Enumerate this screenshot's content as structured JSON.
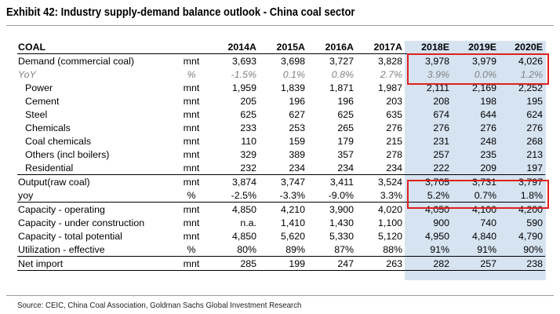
{
  "title": "Exhibit 42: Industry supply-demand balance outlook - China coal sector",
  "header": {
    "label": "COAL",
    "unit": "",
    "years": [
      "2014A",
      "2015A",
      "2016A",
      "2017A",
      "2018E",
      "2019E",
      "2020E"
    ]
  },
  "rows": [
    {
      "label": "Demand (commercial coal)",
      "unit": "mnt",
      "values": [
        "3,693",
        "3,698",
        "3,727",
        "3,828",
        "3,978",
        "3,979",
        "4,026"
      ]
    },
    {
      "label": "YoY",
      "unit": "%",
      "values": [
        "-1.5%",
        "0.1%",
        "0.8%",
        "2.7%",
        "3.9%",
        "0.0%",
        "1.2%"
      ]
    },
    {
      "label": "Power",
      "unit": "mnt",
      "values": [
        "1,959",
        "1,839",
        "1,871",
        "1,987",
        "2,111",
        "2,169",
        "2,252"
      ]
    },
    {
      "label": "Cement",
      "unit": "mnt",
      "values": [
        "205",
        "196",
        "196",
        "203",
        "208",
        "198",
        "195"
      ]
    },
    {
      "label": "Steel",
      "unit": "mnt",
      "values": [
        "625",
        "627",
        "625",
        "635",
        "674",
        "644",
        "624"
      ]
    },
    {
      "label": "Chemicals",
      "unit": "mnt",
      "values": [
        "233",
        "253",
        "265",
        "276",
        "276",
        "276",
        "276"
      ]
    },
    {
      "label": "Coal chemicals",
      "unit": "mnt",
      "values": [
        "110",
        "159",
        "179",
        "215",
        "231",
        "248",
        "268"
      ]
    },
    {
      "label": "Others (incl boilers)",
      "unit": "mnt",
      "values": [
        "329",
        "389",
        "357",
        "278",
        "257",
        "235",
        "213"
      ]
    },
    {
      "label": "Residential",
      "unit": "mnt",
      "values": [
        "232",
        "234",
        "234",
        "234",
        "222",
        "209",
        "197"
      ]
    },
    {
      "label": "Output(raw coal)",
      "unit": "mnt",
      "values": [
        "3,874",
        "3,747",
        "3,411",
        "3,524",
        "3,705",
        "3,731",
        "3,797"
      ]
    },
    {
      "label": "yoy",
      "unit": "%",
      "values": [
        "-2.5%",
        "-3.3%",
        "-9.0%",
        "3.3%",
        "5.2%",
        "0.7%",
        "1.8%"
      ]
    },
    {
      "label": "Capacity - operating",
      "unit": "mnt",
      "values": [
        "4,850",
        "4,210",
        "3,900",
        "4,020",
        "4,050",
        "4,100",
        "4,200"
      ]
    },
    {
      "label": "Capacity - under construction",
      "unit": "mnt",
      "values": [
        "n.a.",
        "1,410",
        "1,430",
        "1,100",
        "900",
        "740",
        "590"
      ]
    },
    {
      "label": "Capacity - total potential",
      "unit": "mnt",
      "values": [
        "4,850",
        "5,620",
        "5,330",
        "5,120",
        "4,950",
        "4,840",
        "4,790"
      ]
    },
    {
      "label": "Utilization - effective",
      "unit": "%",
      "values": [
        "80%",
        "89%",
        "87%",
        "88%",
        "91%",
        "91%",
        "90%"
      ]
    },
    {
      "label": "Net import",
      "unit": "mnt",
      "values": [
        "285",
        "199",
        "247",
        "263",
        "282",
        "257",
        "238"
      ]
    }
  ],
  "source": "Source: CEIC, China Coal Association, Goldman Sachs Global Investment Research",
  "colors": {
    "forecast_shading": "#d6e3f1",
    "highlight_box": "#e0201b",
    "yoy_text": "#808080"
  }
}
